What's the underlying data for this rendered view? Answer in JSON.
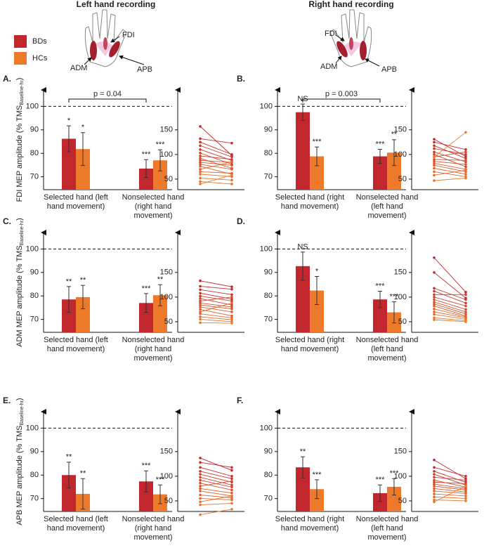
{
  "headers": [
    "Left hand recording",
    "Right hand recording"
  ],
  "hands": [
    [
      "FDI",
      "ADM",
      "APB"
    ],
    [
      "FDI",
      "ADM",
      "APB"
    ]
  ],
  "chart_data": [
    {
      "type": "bar",
      "panel": "A.",
      "ylabel": "FDI MEP amplitude (% TMS",
      "ylabel_sub": "Baseline-hr",
      "ylabel_end": ")",
      "categories": [
        "Selected hand (left hand movement)",
        "Nonselected hand (right hand movement)"
      ],
      "series": [
        {
          "name": "BDs",
          "color": "#c1272d",
          "values": [
            86.2,
            73.5
          ],
          "errors": [
            5.5,
            3.8
          ],
          "significance": [
            "*",
            "***"
          ]
        },
        {
          "name": "HCs",
          "color": "#ec7a2a",
          "values": [
            81.8,
            77
          ],
          "errors": [
            7,
            4.5
          ],
          "significance": [
            "*",
            "***"
          ]
        }
      ],
      "ylim": [
        64.5,
        107
      ],
      "yticks": [
        70,
        80,
        90,
        100
      ],
      "reference_line": 100,
      "annotation": "p = 0.04"
    },
    {
      "type": "paired-line",
      "ylim": [
        28.5,
        231
      ],
      "yticks": [
        50,
        100,
        150
      ],
      "pairs": [
        [
          157,
          98
        ],
        [
          132,
          123
        ],
        [
          125,
          100
        ],
        [
          118,
          95
        ],
        [
          110,
          88
        ],
        [
          103,
          80
        ],
        [
          97,
          90
        ],
        [
          92,
          72
        ],
        [
          88,
          84
        ],
        [
          84,
          78
        ],
        [
          80,
          70
        ],
        [
          76,
          60
        ],
        [
          70,
          85
        ],
        [
          65,
          62
        ],
        [
          60,
          55
        ],
        [
          52,
          48
        ],
        [
          45,
          40
        ],
        [
          40,
          58
        ]
      ]
    },
    {
      "type": "bar",
      "panel": "B.",
      "categories": [
        "Selected hand (right hand movement)",
        "Nonselected hand (left hand movement)"
      ],
      "series": [
        {
          "name": "BDs",
          "color": "#c1272d",
          "values": [
            97.5,
            78.7
          ],
          "errors": [
            3.5,
            3
          ],
          "significance": [
            "NS",
            "***"
          ]
        },
        {
          "name": "HCs",
          "color": "#ec7a2a",
          "values": [
            78.7,
            80.3
          ],
          "errors": [
            4,
            5.5
          ],
          "significance": [
            "***",
            "**"
          ]
        }
      ],
      "ylim": [
        64.5,
        107
      ],
      "yticks": [
        70,
        80,
        90,
        100
      ],
      "reference_line": 100,
      "annotation": "p = 0.003"
    },
    {
      "type": "paired-line",
      "ylim": [
        28.5,
        231
      ],
      "yticks": [
        50,
        100,
        150
      ],
      "pairs": [
        [
          131,
          96
        ],
        [
          125,
          110
        ],
        [
          118,
          92
        ],
        [
          112,
          100
        ],
        [
          105,
          85
        ],
        [
          100,
          75
        ],
        [
          95,
          105
        ],
        [
          90,
          88
        ],
        [
          86,
          80
        ],
        [
          82,
          70
        ],
        [
          78,
          65
        ],
        [
          72,
          60
        ],
        [
          65,
          55
        ],
        [
          58,
          68
        ],
        [
          47,
          52
        ],
        [
          95,
          145
        ]
      ]
    },
    {
      "type": "bar",
      "panel": "C.",
      "ylabel": "ADM MEP amplitude (% TMS",
      "ylabel_sub": "Baseline-hr",
      "ylabel_end": ")",
      "categories": [
        "Selected hand (left hand movement)",
        "Nonselected hand (right hand movement)"
      ],
      "series": [
        {
          "name": "BDs",
          "color": "#c1272d",
          "values": [
            78.5,
            77
          ],
          "errors": [
            5.5,
            4
          ],
          "significance": [
            "**",
            "***"
          ]
        },
        {
          "name": "HCs",
          "color": "#ec7a2a",
          "values": [
            79.5,
            80.3
          ],
          "errors": [
            5,
            4.5
          ],
          "significance": [
            "**",
            "**"
          ]
        }
      ],
      "ylim": [
        64.5,
        107
      ],
      "yticks": [
        70,
        80,
        90,
        100
      ],
      "reference_line": 100
    },
    {
      "type": "paired-line",
      "ylim": [
        28.5,
        231
      ],
      "yticks": [
        50,
        100,
        150
      ],
      "pairs": [
        [
          133,
          121
        ],
        [
          122,
          116
        ],
        [
          115,
          105
        ],
        [
          108,
          96
        ],
        [
          102,
          92
        ],
        [
          97,
          84
        ],
        [
          92,
          100
        ],
        [
          88,
          80
        ],
        [
          84,
          76
        ],
        [
          80,
          70
        ],
        [
          75,
          62
        ],
        [
          70,
          88
        ],
        [
          66,
          58
        ],
        [
          60,
          54
        ],
        [
          55,
          50
        ],
        [
          48,
          47
        ]
      ]
    },
    {
      "type": "bar",
      "panel": "D.",
      "categories": [
        "Selected hand (right hand movement)",
        "Nonselected hand (left hand movement)"
      ],
      "series": [
        {
          "name": "BDs",
          "color": "#c1272d",
          "values": [
            92.7,
            78.5
          ],
          "errors": [
            6,
            3.5
          ],
          "significance": [
            "NS",
            "***"
          ]
        },
        {
          "name": "HCs",
          "color": "#ec7a2a",
          "values": [
            82.3,
            73
          ],
          "errors": [
            6,
            4.5
          ],
          "significance": [
            "*",
            "***"
          ]
        }
      ],
      "ylim": [
        64.5,
        107
      ],
      "yticks": [
        70,
        80,
        90,
        100
      ],
      "reference_line": 100
    },
    {
      "type": "paired-line",
      "ylim": [
        28.5,
        231
      ],
      "yticks": [
        50,
        100,
        150
      ],
      "pairs": [
        [
          180,
          110
        ],
        [
          150,
          98
        ],
        [
          118,
          95
        ],
        [
          112,
          88
        ],
        [
          105,
          105
        ],
        [
          100,
          82
        ],
        [
          95,
          75
        ],
        [
          90,
          70
        ],
        [
          86,
          66
        ],
        [
          82,
          62
        ],
        [
          76,
          60
        ],
        [
          70,
          58
        ],
        [
          65,
          55
        ],
        [
          58,
          52
        ],
        [
          54,
          50
        ]
      ]
    },
    {
      "type": "bar",
      "panel": "E.",
      "ylabel": "APB MEP amplitude (% TMS",
      "ylabel_sub": "Baseline-hr",
      "ylabel_end": ")",
      "categories": [
        "Selected hand (left hand movement)",
        "Nonselected hand (right hand movement)"
      ],
      "series": [
        {
          "name": "BDs",
          "color": "#c1272d",
          "values": [
            80,
            77.3
          ],
          "errors": [
            5.5,
            4.5
          ],
          "significance": [
            "**",
            "***"
          ]
        },
        {
          "name": "HCs",
          "color": "#ec7a2a",
          "values": [
            72,
            71.8
          ],
          "errors": [
            6.5,
            4
          ],
          "significance": [
            "**",
            "***"
          ]
        }
      ],
      "ylim": [
        64.5,
        107
      ],
      "yticks": [
        70,
        80,
        90,
        100
      ],
      "reference_line": 100
    },
    {
      "type": "paired-line",
      "ylim": [
        28.5,
        231
      ],
      "yticks": [
        50,
        100,
        150
      ],
      "pairs": [
        [
          137,
          112
        ],
        [
          128,
          118
        ],
        [
          118,
          100
        ],
        [
          110,
          95
        ],
        [
          104,
          88
        ],
        [
          98,
          82
        ],
        [
          92,
          78
        ],
        [
          86,
          72
        ],
        [
          80,
          90
        ],
        [
          75,
          66
        ],
        [
          70,
          60
        ],
        [
          62,
          56
        ],
        [
          55,
          52
        ],
        [
          48,
          60
        ],
        [
          42,
          45
        ],
        [
          22,
          33
        ]
      ]
    },
    {
      "type": "bar",
      "panel": "F.",
      "categories": [
        "Selected hand (right hand movement)",
        "Nonselected hand (left hand movement)"
      ],
      "series": [
        {
          "name": "BDs",
          "color": "#c1272d",
          "values": [
            83.3,
            72.3
          ],
          "errors": [
            4.5,
            3.5
          ],
          "significance": [
            "**",
            "***"
          ]
        },
        {
          "name": "HCs",
          "color": "#ec7a2a",
          "values": [
            74,
            75
          ],
          "errors": [
            4,
            3.5
          ],
          "significance": [
            "***",
            "***"
          ]
        }
      ],
      "ylim": [
        64.5,
        107
      ],
      "yticks": [
        70,
        80,
        90,
        100
      ],
      "reference_line": 100
    },
    {
      "type": "paired-line",
      "ylim": [
        28.5,
        231
      ],
      "yticks": [
        50,
        100,
        150
      ],
      "pairs": [
        [
          133,
          95
        ],
        [
          118,
          100
        ],
        [
          110,
          88
        ],
        [
          104,
          82
        ],
        [
          98,
          92
        ],
        [
          92,
          78
        ],
        [
          88,
          85
        ],
        [
          84,
          75
        ],
        [
          80,
          72
        ],
        [
          75,
          68
        ],
        [
          70,
          65
        ],
        [
          64,
          60
        ],
        [
          58,
          55
        ],
        [
          52,
          50
        ],
        [
          48,
          80
        ]
      ]
    }
  ]
}
